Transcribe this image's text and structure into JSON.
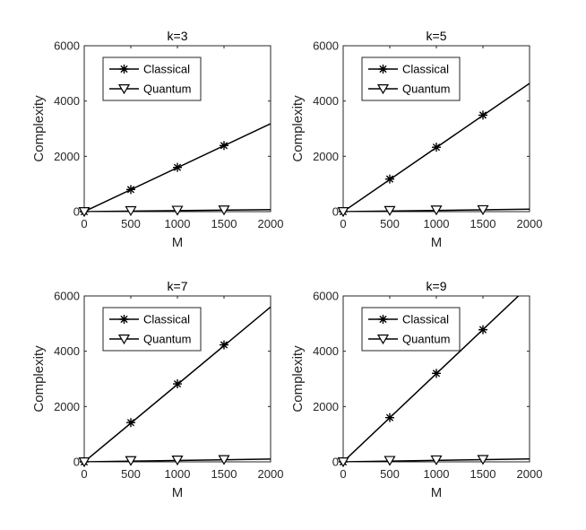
{
  "chart_data": [
    {
      "type": "line",
      "title": "k=3",
      "xlabel": "M",
      "ylabel": "Complexity",
      "xlim": [
        0,
        2000
      ],
      "ylim": [
        0,
        6000
      ],
      "xticks": [
        0,
        500,
        1000,
        1500,
        2000
      ],
      "yticks": [
        0,
        2000,
        4000,
        6000
      ],
      "xtick_labels": [
        "0",
        "500",
        "1000",
        "1500",
        "2000"
      ],
      "ytick_labels": [
        "0",
        "2000",
        "4000",
        "6000"
      ],
      "grid": false,
      "legend_position": "top-left",
      "series": [
        {
          "name": "Classical",
          "marker": "asterisk",
          "line": [
            [
              0,
              0
            ],
            [
              2000,
              3180
            ]
          ],
          "points": [
            [
              0,
              0
            ],
            [
              500,
              800
            ],
            [
              1000,
              1600
            ],
            [
              1500,
              2390
            ]
          ]
        },
        {
          "name": "Quantum",
          "marker": "triangle-down",
          "line": [
            [
              0,
              0
            ],
            [
              2000,
              75
            ]
          ],
          "points": [
            [
              0,
              0
            ],
            [
              500,
              35
            ],
            [
              1000,
              50
            ],
            [
              1500,
              60
            ]
          ]
        }
      ]
    },
    {
      "type": "line",
      "title": "k=5",
      "xlabel": "M",
      "ylabel": "Complexity",
      "xlim": [
        0,
        2000
      ],
      "ylim": [
        0,
        6000
      ],
      "xticks": [
        0,
        500,
        1000,
        1500,
        2000
      ],
      "yticks": [
        0,
        2000,
        4000,
        6000
      ],
      "xtick_labels": [
        "0",
        "500",
        "1000",
        "1500",
        "2000"
      ],
      "ytick_labels": [
        "0",
        "2000",
        "4000",
        "6000"
      ],
      "grid": false,
      "legend_position": "top-left",
      "series": [
        {
          "name": "Classical",
          "marker": "asterisk",
          "line": [
            [
              0,
              0
            ],
            [
              2000,
              4640
            ]
          ],
          "points": [
            [
              0,
              0
            ],
            [
              500,
              1180
            ],
            [
              1000,
              2330
            ],
            [
              1500,
              3490
            ]
          ]
        },
        {
          "name": "Quantum",
          "marker": "triangle-down",
          "line": [
            [
              0,
              0
            ],
            [
              2000,
              90
            ]
          ],
          "points": [
            [
              0,
              0
            ],
            [
              500,
              40
            ],
            [
              1000,
              60
            ],
            [
              1500,
              70
            ]
          ]
        }
      ]
    },
    {
      "type": "line",
      "title": "k=7",
      "xlabel": "M",
      "ylabel": "Complexity",
      "xlim": [
        0,
        2000
      ],
      "ylim": [
        0,
        6000
      ],
      "xticks": [
        0,
        500,
        1000,
        1500,
        2000
      ],
      "yticks": [
        0,
        2000,
        4000,
        6000
      ],
      "xtick_labels": [
        "0",
        "500",
        "1000",
        "1500",
        "2000"
      ],
      "ytick_labels": [
        "0",
        "2000",
        "4000",
        "6000"
      ],
      "grid": false,
      "legend_position": "top-left",
      "series": [
        {
          "name": "Classical",
          "marker": "asterisk",
          "line": [
            [
              0,
              0
            ],
            [
              2000,
              5600
            ]
          ],
          "points": [
            [
              0,
              0
            ],
            [
              500,
              1420
            ],
            [
              1000,
              2820
            ],
            [
              1500,
              4230
            ]
          ]
        },
        {
          "name": "Quantum",
          "marker": "triangle-down",
          "line": [
            [
              0,
              0
            ],
            [
              2000,
              100
            ]
          ],
          "points": [
            [
              0,
              0
            ],
            [
              500,
              45
            ],
            [
              1000,
              65
            ],
            [
              1500,
              80
            ]
          ]
        }
      ]
    },
    {
      "type": "line",
      "title": "k=9",
      "xlabel": "M",
      "ylabel": "Complexity",
      "xlim": [
        0,
        2000
      ],
      "ylim": [
        0,
        6000
      ],
      "xticks": [
        0,
        500,
        1000,
        1500,
        2000
      ],
      "yticks": [
        0,
        2000,
        4000,
        6000
      ],
      "xtick_labels": [
        "0",
        "500",
        "1000",
        "1500",
        "2000"
      ],
      "ytick_labels": [
        "0",
        "2000",
        "4000",
        "6000"
      ],
      "grid": false,
      "legend_position": "top-left",
      "series": [
        {
          "name": "Classical",
          "marker": "asterisk",
          "line": [
            [
              0,
              0
            ],
            [
              2000,
              6380
            ]
          ],
          "points": [
            [
              0,
              0
            ],
            [
              500,
              1600
            ],
            [
              1000,
              3200
            ],
            [
              1500,
              4780
            ]
          ]
        },
        {
          "name": "Quantum",
          "marker": "triangle-down",
          "line": [
            [
              0,
              0
            ],
            [
              2000,
              105
            ]
          ],
          "points": [
            [
              0,
              0
            ],
            [
              500,
              50
            ],
            [
              1000,
              70
            ],
            [
              1500,
              85
            ]
          ]
        }
      ]
    }
  ]
}
